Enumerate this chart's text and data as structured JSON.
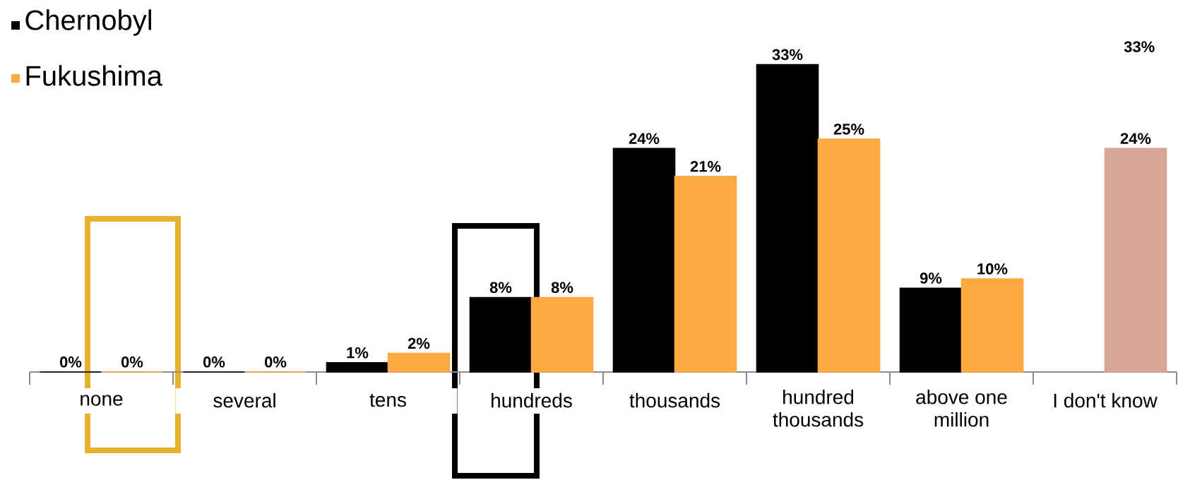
{
  "chart_data": {
    "type": "bar",
    "categories": [
      "none",
      "several",
      "tens",
      "hundreds",
      "thousands",
      "hundred thousands",
      "above one million",
      "I don't know"
    ],
    "series": [
      {
        "name": "Chernobyl",
        "color": "#000000",
        "values": [
          0,
          0,
          1,
          8,
          24,
          33,
          9,
          null
        ],
        "value_labels": [
          null,
          null,
          "1%",
          "8%",
          "24%",
          "33%",
          "9%",
          null
        ]
      },
      {
        "name": "Fukushima",
        "color": "#fbaa42",
        "colors": [
          "#fbaa42",
          "#fbaa42",
          "#fbaa42",
          "#fbaa42",
          "#fbaa42",
          "#fbaa42",
          "#fbaa42",
          "#d8a596"
        ],
        "values": [
          0,
          0,
          2,
          8,
          21,
          25,
          10,
          24
        ],
        "value_labels": [
          null,
          null,
          "2%",
          "8%",
          "21%",
          "25%",
          "10%",
          "24%"
        ]
      }
    ],
    "legend": "top left",
    "annotations": [
      {
        "text": "0%",
        "x": "none",
        "y": 0
      },
      {
        "text": "0%",
        "x": "none",
        "y": 0
      },
      {
        "text": "0%",
        "x": "several",
        "y": 0
      },
      {
        "text": "0%",
        "x": "several",
        "y": 0
      },
      "33%"
    ]
  }
}
